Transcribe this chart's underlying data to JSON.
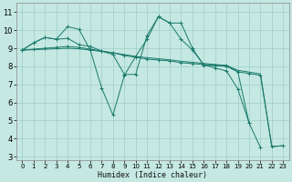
{
  "xlabel": "Humidex (Indice chaleur)",
  "xlim": [
    -0.5,
    23.5
  ],
  "ylim": [
    2.8,
    11.5
  ],
  "yticks": [
    3,
    4,
    5,
    6,
    7,
    8,
    9,
    10,
    11
  ],
  "xticks": [
    0,
    1,
    2,
    3,
    4,
    5,
    6,
    7,
    8,
    9,
    10,
    11,
    12,
    13,
    14,
    15,
    16,
    17,
    18,
    19,
    20,
    21,
    22,
    23
  ],
  "background_color": "#c5e8e2",
  "grid_color": "#9ecfc7",
  "line_color": "#1a7a6a",
  "lines": [
    {
      "x": [
        0,
        1,
        2,
        3,
        4,
        5,
        6,
        7,
        8,
        9,
        10,
        11,
        12,
        13,
        14,
        15,
        16,
        17,
        18,
        19,
        20,
        21
      ],
      "y": [
        8.9,
        9.3,
        9.6,
        9.5,
        10.2,
        10.05,
        8.9,
        6.8,
        5.3,
        7.5,
        8.55,
        9.5,
        10.75,
        10.4,
        9.5,
        8.9,
        8.1,
        7.9,
        7.75,
        6.75,
        4.85,
        null
      ],
      "has_markers": true
    },
    {
      "x": [
        0,
        1,
        2,
        3,
        4,
        5,
        6,
        7,
        8,
        9,
        10,
        11,
        12,
        13,
        14,
        15,
        16,
        17,
        18,
        19,
        20,
        21
      ],
      "y": [
        8.9,
        9.3,
        9.6,
        9.5,
        9.55,
        9.2,
        9.1,
        8.85,
        8.65,
        7.55,
        7.55,
        9.7,
        10.75,
        10.4,
        10.4,
        9.0,
        8.05,
        8.05,
        8.05,
        7.7,
        4.85,
        3.5
      ],
      "has_markers": true
    },
    {
      "x": [
        0,
        1,
        2,
        3,
        4,
        5,
        6,
        7,
        8,
        9,
        10,
        11,
        12,
        13,
        14,
        15,
        16,
        17,
        18,
        19,
        20,
        21,
        22,
        23
      ],
      "y": [
        8.9,
        8.95,
        9.0,
        9.05,
        9.1,
        9.05,
        8.95,
        8.85,
        8.75,
        8.6,
        8.5,
        8.4,
        8.35,
        8.3,
        8.2,
        8.15,
        8.1,
        8.05,
        8.0,
        7.7,
        7.6,
        7.5,
        3.55,
        3.6
      ],
      "has_markers": true
    },
    {
      "x": [
        0,
        1,
        2,
        3,
        4,
        5,
        6,
        7,
        8,
        9,
        10,
        11,
        12,
        13,
        14,
        15,
        16,
        17,
        18,
        19,
        20,
        21,
        22,
        23
      ],
      "y": [
        8.9,
        8.92,
        8.95,
        8.97,
        9.0,
        8.97,
        8.9,
        8.82,
        8.75,
        8.65,
        8.55,
        8.48,
        8.42,
        8.36,
        8.28,
        8.22,
        8.16,
        8.1,
        8.05,
        7.78,
        7.68,
        7.58,
        3.55,
        3.6
      ],
      "has_markers": false
    }
  ]
}
